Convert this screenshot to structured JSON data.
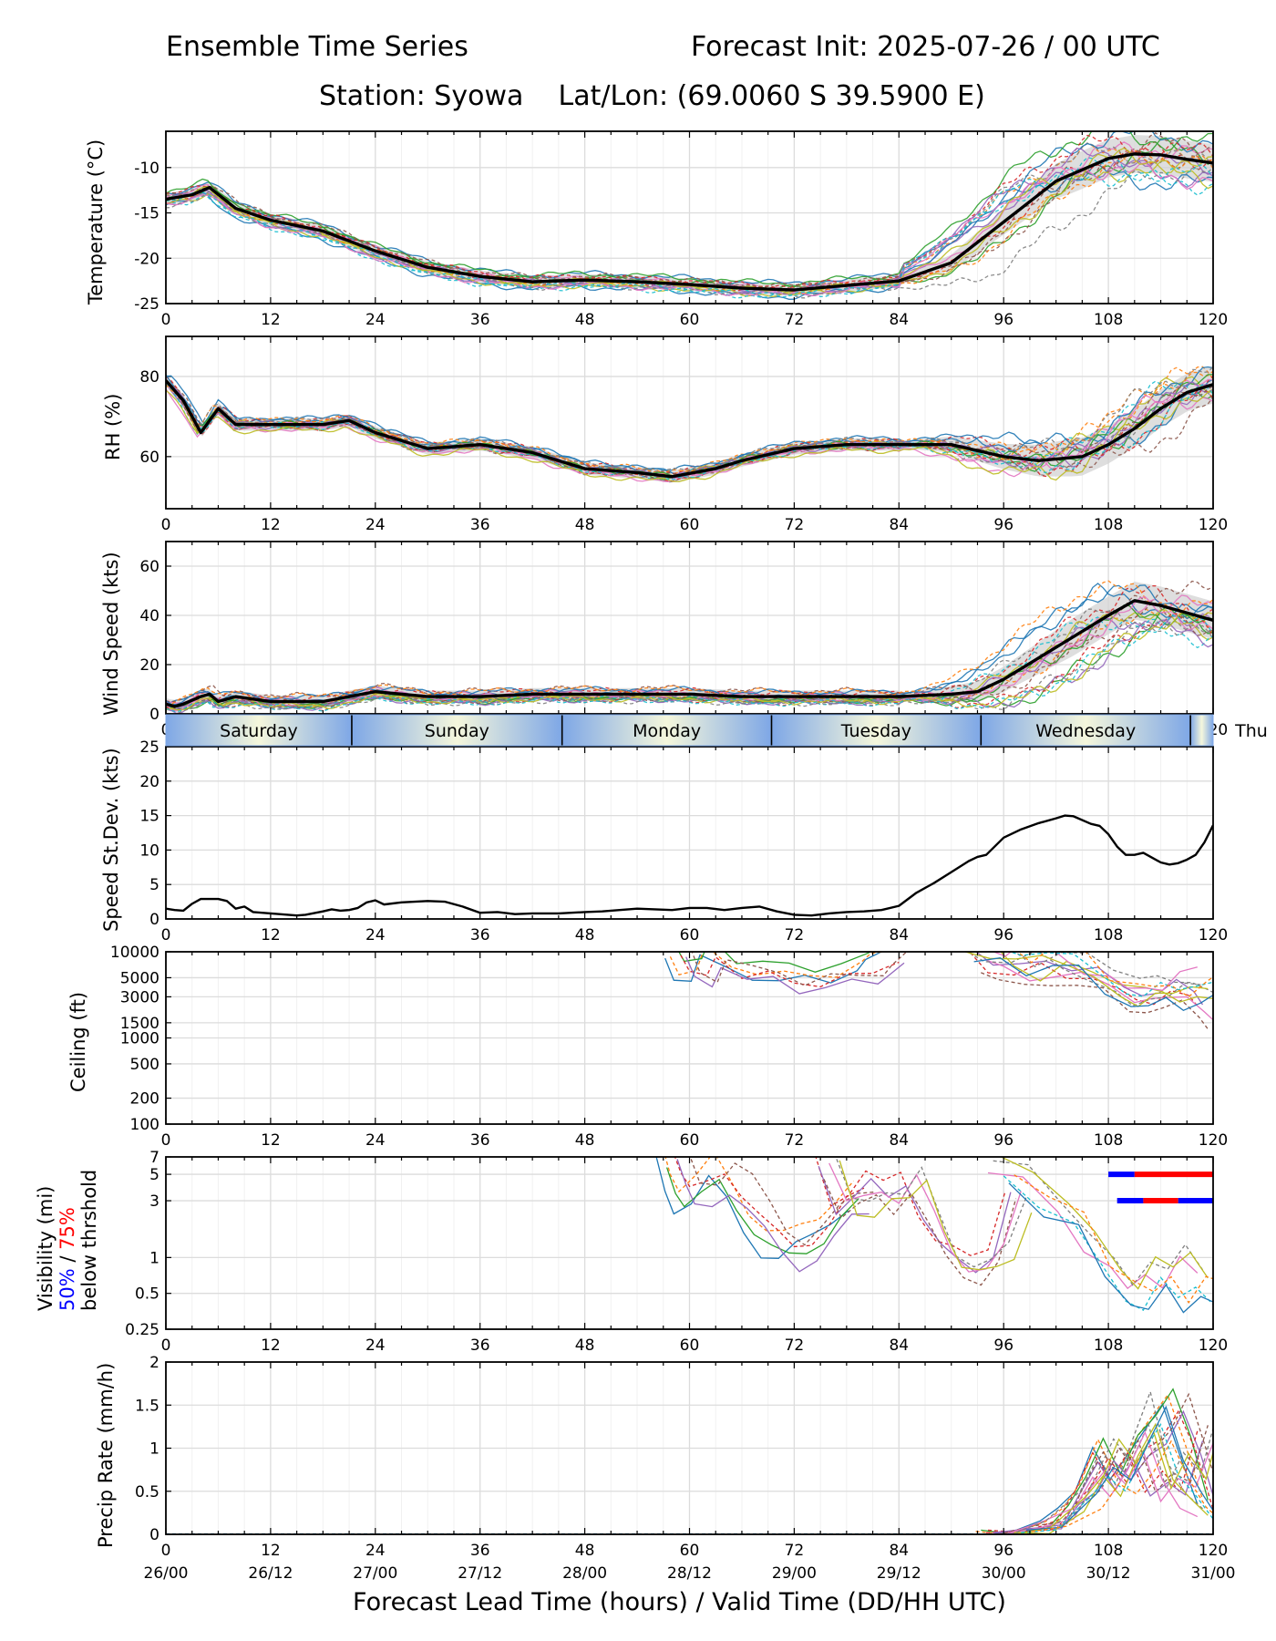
{
  "header": {
    "title_left": "Ensemble Time Series",
    "title_right": "Forecast Init: 2025-07-26 / 00 UTC",
    "station_line": "Station: Syowa    Lat/Lon: (69.0060 S 39.5900 E)"
  },
  "xaxis": {
    "label": "Forecast Lead Time (hours) / Valid Time (DD/HH UTC)",
    "hour_ticks": [
      0,
      12,
      24,
      36,
      48,
      60,
      72,
      84,
      96,
      108,
      120
    ],
    "valid_ticks": [
      "26/00",
      "26/12",
      "27/00",
      "27/12",
      "28/00",
      "28/12",
      "29/00",
      "29/12",
      "30/00",
      "30/12",
      "31/00"
    ]
  },
  "days": {
    "labels": [
      "Saturday",
      "Sunday",
      "Monday",
      "Tuesday",
      "Wednesday",
      "Thu"
    ],
    "boundaries_hours": [
      21.3,
      45.4,
      69.4,
      93.4,
      117.4
    ]
  },
  "colors": {
    "mean": "#000000",
    "spread": "#d3d3d3",
    "below50": "#0000ff",
    "below75": "#ff0000",
    "members": [
      "#1f77b4",
      "#ff7f0e",
      "#2ca02c",
      "#d62728",
      "#9467bd",
      "#8c564b",
      "#e377c2",
      "#7f7f7f",
      "#bcbd22",
      "#17becf"
    ]
  },
  "visibility_label": {
    "line1": "Visibility (mi)",
    "pct50": "50%",
    "sep": " / ",
    "pct75": "75%",
    "line3": "below thrshold"
  },
  "chart_data": [
    {
      "type": "line",
      "ylabel": "Temperature (°C)",
      "ylim": [
        -25,
        -6
      ],
      "yticks": [
        -25,
        -20,
        -15,
        -10
      ],
      "series": [
        {
          "name": "",
          "x": [
            0,
            3,
            5,
            8,
            12,
            18,
            24,
            30,
            36,
            42,
            48,
            54,
            60,
            66,
            72,
            78,
            84,
            90,
            96,
            102,
            108,
            111,
            114,
            117,
            120
          ],
          "values": [
            -13.5,
            -13,
            -12.2,
            -14.5,
            -15.8,
            -17,
            -19.2,
            -21,
            -22,
            -22.6,
            -22.4,
            -22.6,
            -22.9,
            -23.3,
            -23.5,
            -23,
            -22.5,
            -20.5,
            -16,
            -11.5,
            -9,
            -8.5,
            -8.6,
            -9.1,
            -9.5
          ]
        }
      ]
    },
    {
      "type": "line",
      "ylabel": "RH (%)",
      "ylim": [
        47,
        90
      ],
      "yticks": [
        60,
        80
      ],
      "series": [
        {
          "name": "",
          "x": [
            0,
            2,
            4,
            6,
            8,
            12,
            18,
            21,
            24,
            30,
            36,
            42,
            48,
            54,
            58,
            63,
            66,
            72,
            78,
            84,
            90,
            96,
            100,
            105,
            108,
            111,
            114,
            117,
            120
          ],
          "values": [
            79,
            74,
            66,
            72,
            68,
            68,
            68,
            69,
            66,
            62,
            63,
            61,
            57,
            56,
            55,
            57,
            59,
            62,
            63,
            63,
            63,
            60,
            59,
            60,
            63,
            67,
            72,
            76,
            78
          ]
        }
      ]
    },
    {
      "type": "line",
      "ylabel": "Wind Speed (kts)",
      "ylim": [
        0,
        70
      ],
      "yticks": [
        0,
        20,
        40,
        60
      ],
      "series": [
        {
          "name": "",
          "x": [
            0,
            1,
            2,
            4,
            5,
            6,
            8,
            10,
            12,
            18,
            21,
            24,
            30,
            36,
            42,
            48,
            54,
            60,
            66,
            72,
            78,
            84,
            90,
            93,
            96,
            102,
            108,
            111,
            114,
            117,
            120
          ],
          "values": [
            4,
            3,
            4,
            7,
            8,
            5,
            7,
            6,
            5,
            5,
            7,
            9,
            7,
            7,
            8,
            8,
            8,
            8,
            7,
            7,
            7,
            7,
            8,
            9,
            14,
            27,
            40,
            46,
            44,
            41,
            38
          ]
        }
      ]
    },
    {
      "type": "line",
      "ylabel": "Speed St.Dev. (kts)",
      "ylim": [
        0,
        25
      ],
      "yticks": [
        0,
        5,
        10,
        15,
        20,
        25
      ],
      "series": [
        {
          "name": "",
          "x": [
            0,
            1,
            2,
            3,
            4,
            5,
            6,
            7,
            8,
            9,
            10,
            12,
            14,
            15,
            16,
            18,
            19,
            20,
            21,
            22,
            23,
            24,
            25,
            27,
            30,
            32,
            34,
            36,
            38,
            40,
            42,
            45,
            48,
            50,
            54,
            58,
            60,
            62,
            64,
            66,
            68,
            70,
            72,
            74,
            76,
            78,
            80,
            82,
            84,
            86,
            88,
            90,
            92,
            93,
            94,
            96,
            98,
            100,
            102,
            103,
            104,
            106,
            107,
            108,
            109,
            110,
            111,
            112,
            114,
            115,
            116,
            117,
            118,
            119,
            120
          ],
          "values": [
            1.5,
            1.3,
            1.2,
            2.2,
            2.9,
            2.9,
            2.9,
            2.6,
            1.5,
            1.8,
            1.0,
            0.8,
            0.6,
            0.5,
            0.6,
            1.1,
            1.4,
            1.2,
            1.3,
            1.6,
            2.4,
            2.7,
            2.1,
            2.4,
            2.6,
            2.5,
            1.8,
            0.9,
            1.0,
            0.7,
            0.8,
            0.8,
            1.0,
            1.1,
            1.5,
            1.3,
            1.6,
            1.6,
            1.3,
            1.6,
            1.8,
            1.1,
            0.6,
            0.5,
            0.8,
            1.0,
            1.1,
            1.3,
            1.9,
            3.8,
            5.2,
            6.8,
            8.4,
            9.0,
            9.3,
            11.8,
            13.0,
            13.9,
            14.6,
            15.0,
            14.9,
            13.8,
            13.5,
            12.3,
            10.5,
            9.3,
            9.3,
            9.6,
            8.2,
            7.9,
            8.1,
            8.6,
            9.3,
            11.1,
            13.6
          ]
        }
      ]
    },
    {
      "type": "line",
      "ylabel": "Ceiling (ft)",
      "ylim": [
        100,
        10000
      ],
      "yscale": "log",
      "yticks": [
        100,
        200,
        500,
        1000,
        1500,
        3000,
        5000,
        10000
      ],
      "series": [
        {
          "name": "",
          "x": [
            59,
            60,
            62,
            63,
            66,
            69,
            72,
            75,
            78,
            81,
            82,
            84
          ],
          "values": [
            10000,
            6000,
            5500,
            10000,
            6500,
            6000,
            5000,
            5200,
            5600,
            6500,
            8000,
            10000
          ]
        },
        {
          "name": "",
          "x": [
            94,
            96,
            99,
            102,
            105,
            108,
            111,
            113,
            115,
            117,
            119,
            120
          ],
          "values": [
            10000,
            7000,
            5500,
            7000,
            6000,
            5000,
            3500,
            3200,
            3000,
            3600,
            2800,
            2200
          ]
        },
        {
          "name": "",
          "x": [
            92,
            95,
            98,
            101,
            104,
            107,
            110,
            112,
            114,
            116,
            118,
            120
          ],
          "values": [
            10000,
            8500,
            6500,
            9000,
            7000,
            4000,
            3000,
            2500,
            3000,
            2600,
            3500,
            4000
          ]
        }
      ]
    },
    {
      "type": "line",
      "ylabel": "",
      "ylim": [
        0.25,
        7
      ],
      "yscale": "log",
      "yticks": [
        0.25,
        0.5,
        1,
        3,
        5,
        7
      ],
      "series": [
        {
          "name": "",
          "x": [
            58,
            59,
            60,
            62,
            64,
            66,
            68,
            70,
            72,
            74,
            76,
            78,
            80
          ],
          "values": [
            7,
            4,
            2.8,
            3.2,
            4.5,
            3,
            1.8,
            1.2,
            1.0,
            1.2,
            1.6,
            2.3,
            2.8
          ]
        },
        {
          "name": "",
          "x": [
            76,
            78,
            80,
            82,
            84,
            86,
            88,
            90,
            92,
            94,
            96,
            98
          ],
          "values": [
            7,
            2.8,
            3.2,
            4.2,
            3.5,
            5,
            2.3,
            1.2,
            0.95,
            0.9,
            1.2,
            3.5
          ]
        },
        {
          "name": "",
          "x": [
            96,
            100,
            104,
            107,
            110,
            112,
            114,
            116,
            118,
            120
          ],
          "values": [
            5,
            3.5,
            2.2,
            1.0,
            0.6,
            0.45,
            0.7,
            0.5,
            0.75,
            0.55
          ]
        }
      ],
      "threshold_bars": [
        {
          "name": "50%",
          "y": 5,
          "x": [
            108,
            111
          ]
        },
        {
          "name": "75%",
          "y": 5,
          "x": [
            111,
            120
          ]
        },
        {
          "name": "50%",
          "y": 3,
          "x": [
            109,
            112
          ]
        },
        {
          "name": "75%",
          "y": 3,
          "x": [
            112,
            116
          ]
        },
        {
          "name": "50%",
          "y": 3,
          "x": [
            116,
            120
          ]
        }
      ]
    },
    {
      "type": "line",
      "ylabel": "Precip Rate (mm/h)",
      "ylim": [
        0,
        2.0
      ],
      "yticks": [
        0.0,
        0.5,
        1.0,
        1.5,
        2.0
      ],
      "series": [
        {
          "name": "",
          "x": [
            94,
            98,
            102,
            104,
            106,
            108,
            110,
            112,
            114,
            116,
            118,
            120
          ],
          "values": [
            0,
            0.02,
            0.1,
            0.3,
            0.5,
            0.9,
            0.6,
            0.9,
            1.1,
            1.4,
            0.9,
            0.3
          ]
        },
        {
          "name": "",
          "x": [
            96,
            100,
            104,
            106,
            108,
            110,
            112,
            114,
            116,
            118,
            120
          ],
          "values": [
            0,
            0.05,
            0.2,
            0.6,
            1.0,
            0.7,
            1.1,
            0.5,
            0.8,
            0.6,
            1.3
          ]
        },
        {
          "name": "",
          "x": [
            98,
            102,
            106,
            108,
            110,
            112,
            114,
            116,
            118,
            120
          ],
          "values": [
            0,
            0.1,
            0.4,
            0.7,
            0.5,
            0.9,
            1.3,
            0.7,
            0.4,
            0.2
          ]
        }
      ]
    }
  ]
}
